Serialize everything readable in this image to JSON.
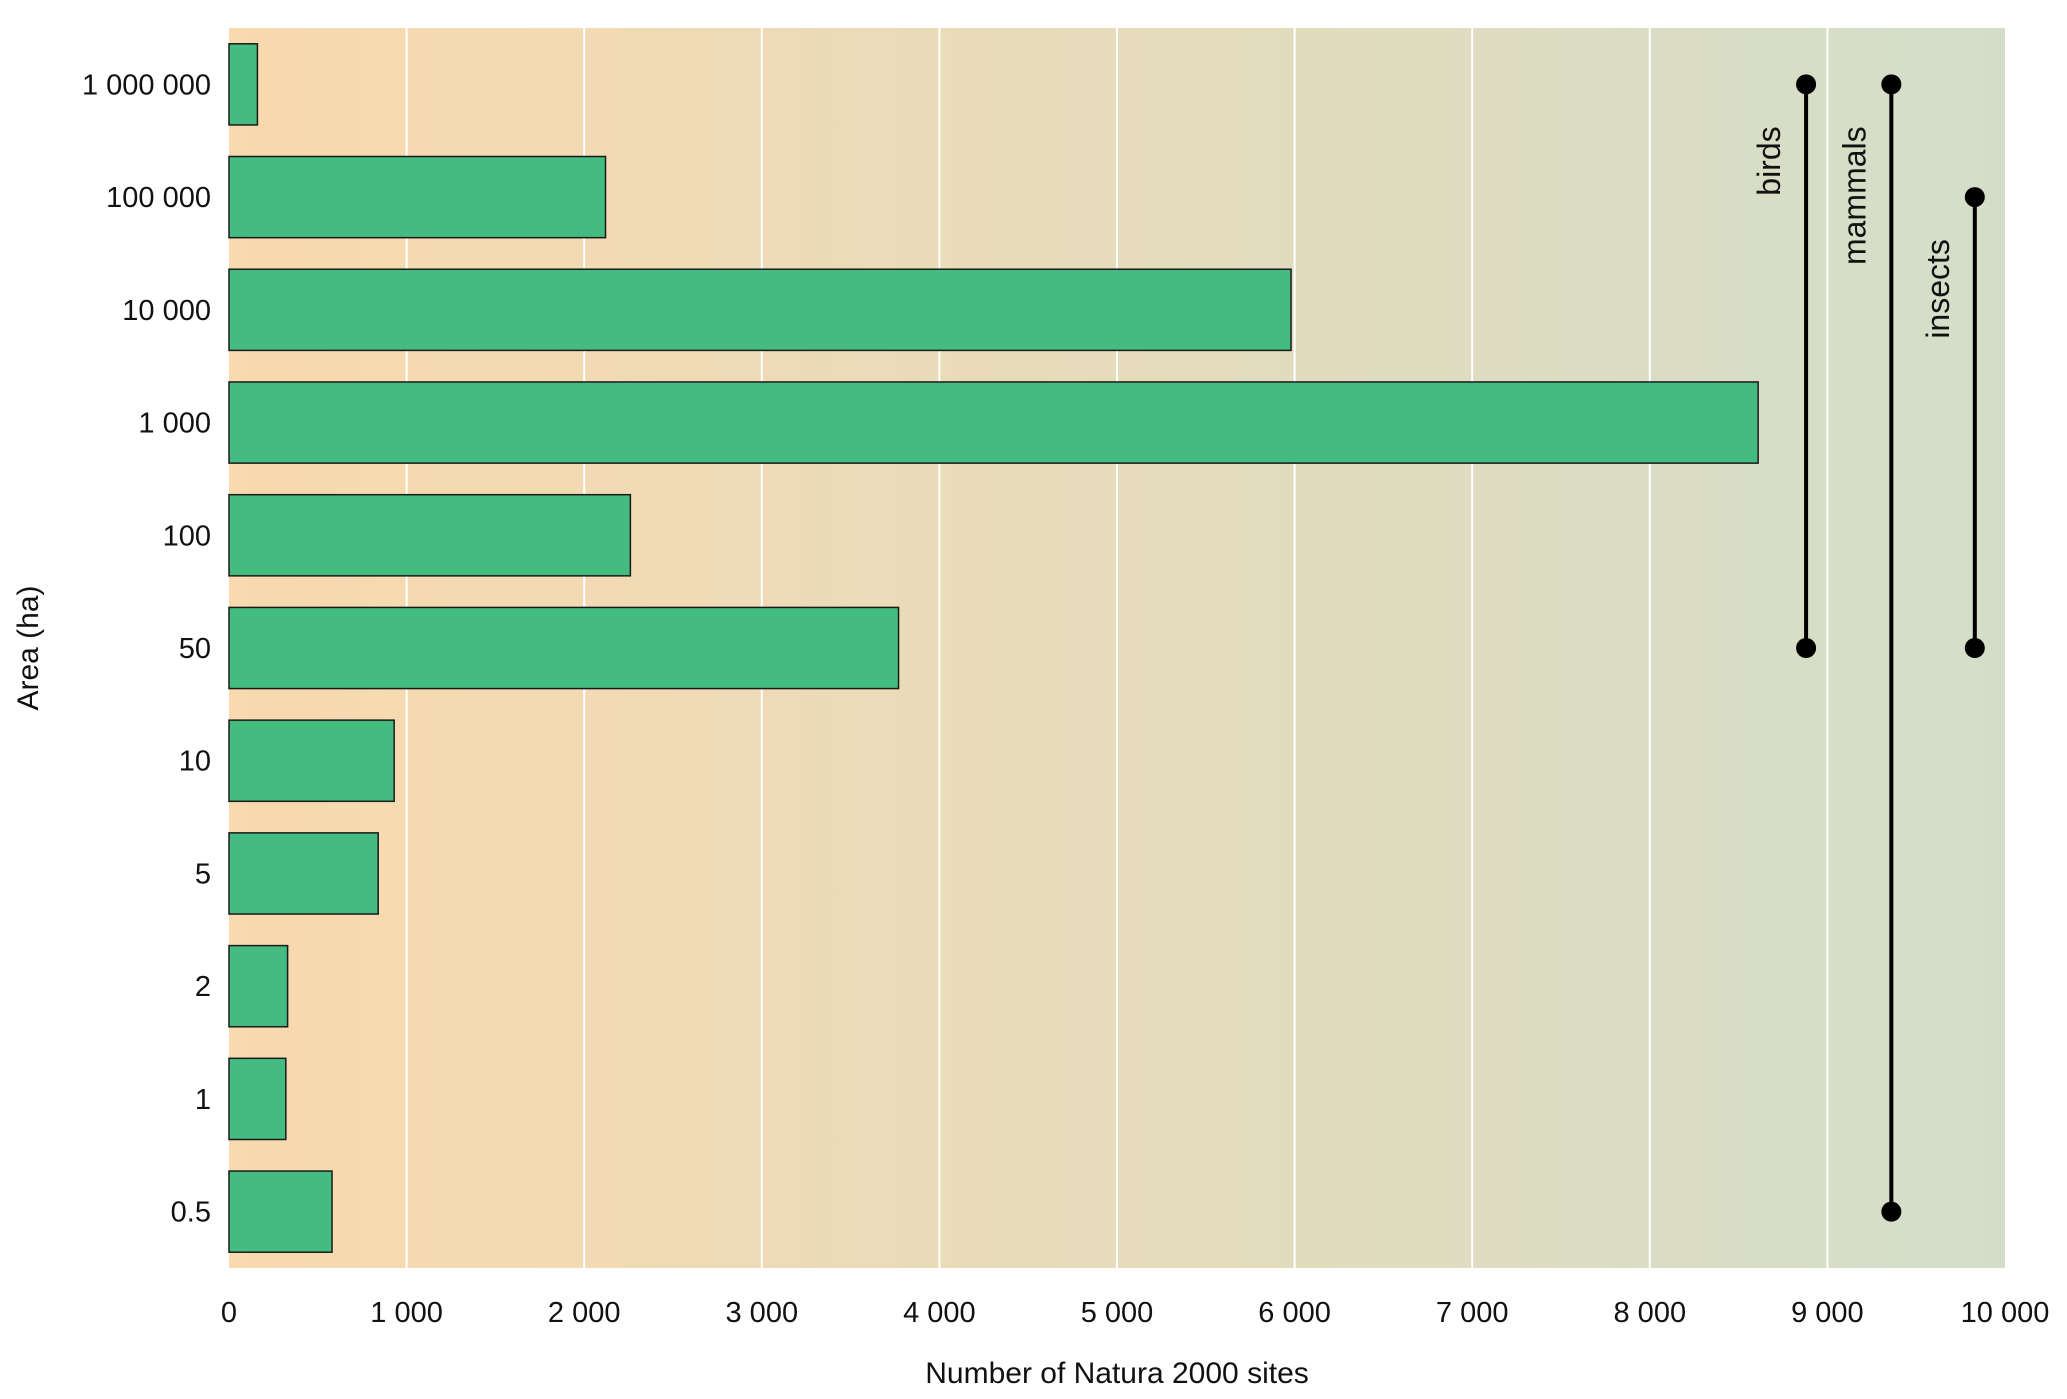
{
  "chart_data": {
    "type": "bar",
    "orientation": "horizontal",
    "xlabel": "Number of Natura 2000 sites",
    "ylabel": "Area (ha)",
    "xlim": [
      0,
      10000
    ],
    "xticks": [
      0,
      1000,
      2000,
      3000,
      4000,
      5000,
      6000,
      7000,
      8000,
      9000,
      10000
    ],
    "xtick_labels": [
      "0",
      "1 000",
      "2 000",
      "3 000",
      "4 000",
      "5 000",
      "6 000",
      "7 000",
      "8 000",
      "9 000",
      "10 000"
    ],
    "categories": [
      "1 000 000",
      "100 000",
      "10 000",
      "1 000",
      "100",
      "50",
      "10",
      "5",
      "2",
      "1",
      "0.5"
    ],
    "values": [
      160,
      2120,
      5980,
      8610,
      2260,
      3770,
      930,
      840,
      330,
      320,
      580
    ],
    "grid": "vertical",
    "colors": {
      "bar_fill": "#44bb80",
      "bar_edge": "#1a1a1a",
      "background_left": "#f9d9ae",
      "background_right": "#d3dec9",
      "gridline": "#ffffff",
      "range_line": "#000000"
    },
    "ranges": [
      {
        "label": "birds",
        "x": 8880,
        "from": "50",
        "to": "1 000 000"
      },
      {
        "label": "mammals",
        "x": 9360,
        "from": "0.5",
        "to": "1 000 000"
      },
      {
        "label": "insects",
        "x": 9830,
        "from": "50",
        "to": "100 000"
      }
    ]
  }
}
